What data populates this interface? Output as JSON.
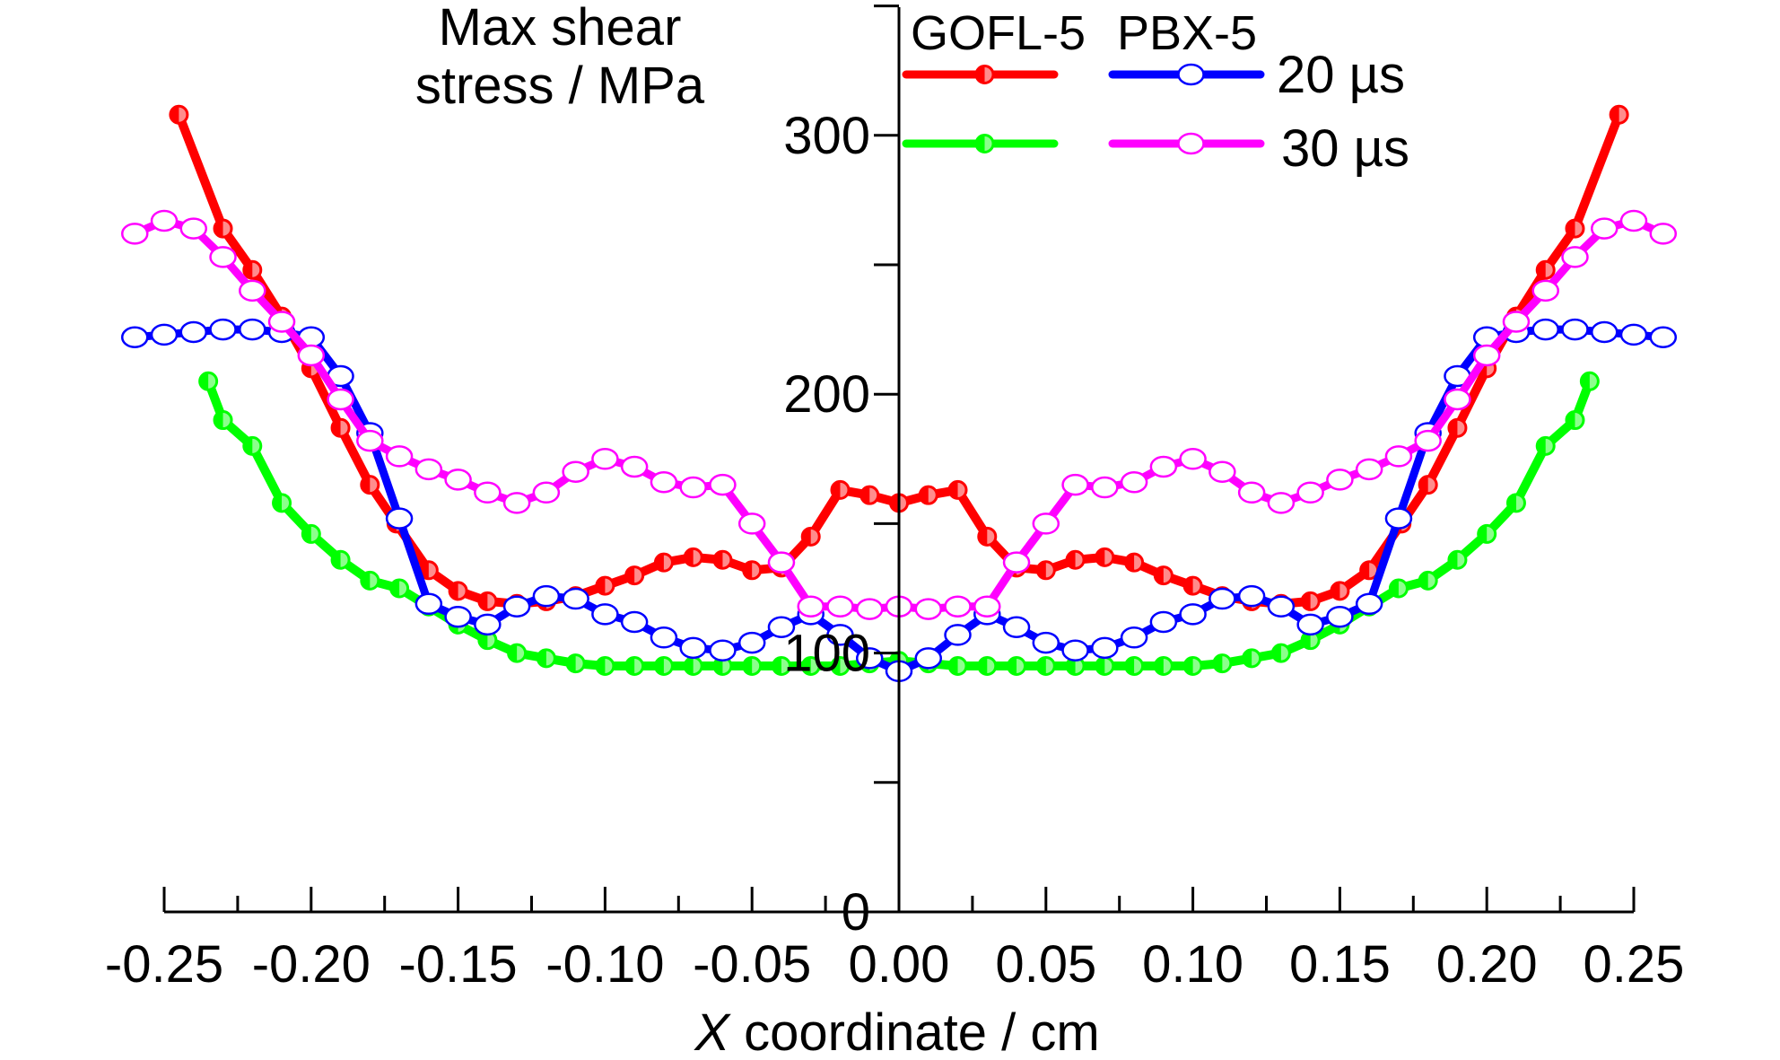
{
  "chart_data": {
    "type": "line",
    "title": "",
    "ylabel_lines": [
      "Max shear",
      "stress / MPa"
    ],
    "xlabel_var": "X",
    "xlabel_rest": " coordinate / cm",
    "xlim": [
      -0.25,
      0.25
    ],
    "ylim": [
      0,
      350
    ],
    "x_ticks": [
      "-0.25",
      "-0.20",
      "-0.15",
      "-0.10",
      "-0.05",
      "0.00",
      "0.05",
      "0.10",
      "0.15",
      "0.20",
      "0.25"
    ],
    "y_ticks": [
      "0",
      "100",
      "200",
      "300"
    ],
    "legend": {
      "group_labels": [
        "GOFL-5",
        "PBX-5"
      ],
      "time_labels": [
        "20 µs",
        "30 µs"
      ]
    },
    "grid": false,
    "series": [
      {
        "name": "GOFL-5 20 µs",
        "color": "#ff0000",
        "marker": "half-filled",
        "points": [
          [
            -0.245,
            308
          ],
          [
            -0.23,
            264
          ],
          [
            -0.22,
            248
          ],
          [
            -0.21,
            230
          ],
          [
            -0.2,
            210
          ],
          [
            -0.19,
            187
          ],
          [
            -0.18,
            165
          ],
          [
            -0.171,
            150
          ],
          [
            -0.16,
            132
          ],
          [
            -0.15,
            124
          ],
          [
            -0.14,
            120
          ],
          [
            -0.13,
            119
          ],
          [
            -0.12,
            120
          ],
          [
            -0.11,
            122
          ],
          [
            -0.1,
            126
          ],
          [
            -0.09,
            130
          ],
          [
            -0.08,
            135
          ],
          [
            -0.07,
            137
          ],
          [
            -0.06,
            136
          ],
          [
            -0.05,
            132
          ],
          [
            -0.04,
            133
          ],
          [
            -0.03,
            145
          ],
          [
            -0.02,
            163
          ],
          [
            -0.01,
            161
          ],
          [
            0.0,
            158
          ],
          [
            0.01,
            161
          ],
          [
            0.02,
            163
          ],
          [
            0.03,
            145
          ],
          [
            0.04,
            133
          ],
          [
            0.05,
            132
          ],
          [
            0.06,
            136
          ],
          [
            0.07,
            137
          ],
          [
            0.08,
            135
          ],
          [
            0.09,
            130
          ],
          [
            0.1,
            126
          ],
          [
            0.11,
            122
          ],
          [
            0.12,
            120
          ],
          [
            0.13,
            119
          ],
          [
            0.14,
            120
          ],
          [
            0.15,
            124
          ],
          [
            0.16,
            132
          ],
          [
            0.171,
            150
          ],
          [
            0.18,
            165
          ],
          [
            0.19,
            187
          ],
          [
            0.2,
            210
          ],
          [
            0.21,
            230
          ],
          [
            0.22,
            248
          ],
          [
            0.23,
            264
          ],
          [
            0.245,
            308
          ]
        ]
      },
      {
        "name": "GOFL-5 30 µs",
        "color": "#00ff00",
        "marker": "half-filled",
        "points": [
          [
            -0.235,
            205
          ],
          [
            -0.23,
            190
          ],
          [
            -0.22,
            180
          ],
          [
            -0.21,
            158
          ],
          [
            -0.2,
            146
          ],
          [
            -0.19,
            136
          ],
          [
            -0.18,
            128
          ],
          [
            -0.17,
            125
          ],
          [
            -0.16,
            118
          ],
          [
            -0.15,
            111
          ],
          [
            -0.14,
            105
          ],
          [
            -0.13,
            100
          ],
          [
            -0.12,
            98
          ],
          [
            -0.11,
            96
          ],
          [
            -0.1,
            95
          ],
          [
            -0.09,
            95
          ],
          [
            -0.08,
            95
          ],
          [
            -0.07,
            95
          ],
          [
            -0.06,
            95
          ],
          [
            -0.05,
            95
          ],
          [
            -0.04,
            95
          ],
          [
            -0.03,
            95
          ],
          [
            -0.02,
            95
          ],
          [
            -0.01,
            96
          ],
          [
            0.0,
            97
          ],
          [
            0.01,
            96
          ],
          [
            0.02,
            95
          ],
          [
            0.03,
            95
          ],
          [
            0.04,
            95
          ],
          [
            0.05,
            95
          ],
          [
            0.06,
            95
          ],
          [
            0.07,
            95
          ],
          [
            0.08,
            95
          ],
          [
            0.09,
            95
          ],
          [
            0.1,
            95
          ],
          [
            0.11,
            96
          ],
          [
            0.12,
            98
          ],
          [
            0.13,
            100
          ],
          [
            0.14,
            105
          ],
          [
            0.15,
            111
          ],
          [
            0.16,
            118
          ],
          [
            0.17,
            125
          ],
          [
            0.18,
            128
          ],
          [
            0.19,
            136
          ],
          [
            0.2,
            146
          ],
          [
            0.21,
            158
          ],
          [
            0.22,
            180
          ],
          [
            0.23,
            190
          ],
          [
            0.235,
            205
          ]
        ]
      },
      {
        "name": "PBX-5 20 µs",
        "color": "#0000ff",
        "marker": "open-circle",
        "points": [
          [
            -0.26,
            222
          ],
          [
            -0.25,
            223
          ],
          [
            -0.24,
            224
          ],
          [
            -0.23,
            225
          ],
          [
            -0.22,
            225
          ],
          [
            -0.21,
            224
          ],
          [
            -0.2,
            222
          ],
          [
            -0.19,
            207
          ],
          [
            -0.18,
            185
          ],
          [
            -0.17,
            152
          ],
          [
            -0.16,
            119
          ],
          [
            -0.15,
            114
          ],
          [
            -0.14,
            111
          ],
          [
            -0.13,
            118
          ],
          [
            -0.12,
            122
          ],
          [
            -0.11,
            121
          ],
          [
            -0.1,
            115
          ],
          [
            -0.09,
            112
          ],
          [
            -0.08,
            106
          ],
          [
            -0.07,
            102
          ],
          [
            -0.06,
            101
          ],
          [
            -0.05,
            104
          ],
          [
            -0.04,
            110
          ],
          [
            -0.03,
            115
          ],
          [
            -0.02,
            107
          ],
          [
            -0.01,
            98
          ],
          [
            0.0,
            93
          ],
          [
            0.01,
            98
          ],
          [
            0.02,
            107
          ],
          [
            0.03,
            115
          ],
          [
            0.04,
            110
          ],
          [
            0.05,
            104
          ],
          [
            0.06,
            101
          ],
          [
            0.07,
            102
          ],
          [
            0.08,
            106
          ],
          [
            0.09,
            112
          ],
          [
            0.1,
            115
          ],
          [
            0.11,
            121
          ],
          [
            0.12,
            122
          ],
          [
            0.13,
            118
          ],
          [
            0.14,
            111
          ],
          [
            0.15,
            114
          ],
          [
            0.16,
            119
          ],
          [
            0.17,
            152
          ],
          [
            0.18,
            185
          ],
          [
            0.19,
            207
          ],
          [
            0.2,
            222
          ],
          [
            0.21,
            224
          ],
          [
            0.22,
            225
          ],
          [
            0.23,
            225
          ],
          [
            0.24,
            224
          ],
          [
            0.25,
            223
          ],
          [
            0.26,
            222
          ]
        ]
      },
      {
        "name": "PBX-5 30 µs",
        "color": "#ff00ff",
        "marker": "open-circle",
        "points": [
          [
            -0.26,
            262
          ],
          [
            -0.25,
            267
          ],
          [
            -0.24,
            264
          ],
          [
            -0.23,
            253
          ],
          [
            -0.22,
            240
          ],
          [
            -0.21,
            228
          ],
          [
            -0.2,
            215
          ],
          [
            -0.19,
            198
          ],
          [
            -0.18,
            182
          ],
          [
            -0.17,
            176
          ],
          [
            -0.16,
            171
          ],
          [
            -0.15,
            167
          ],
          [
            -0.14,
            162
          ],
          [
            -0.13,
            158
          ],
          [
            -0.12,
            162
          ],
          [
            -0.11,
            170
          ],
          [
            -0.1,
            175
          ],
          [
            -0.09,
            172
          ],
          [
            -0.08,
            166
          ],
          [
            -0.07,
            164
          ],
          [
            -0.06,
            165
          ],
          [
            -0.05,
            150
          ],
          [
            -0.04,
            135
          ],
          [
            -0.03,
            118
          ],
          [
            -0.02,
            118
          ],
          [
            -0.01,
            117
          ],
          [
            0.0,
            118
          ],
          [
            0.01,
            117
          ],
          [
            0.02,
            118
          ],
          [
            0.03,
            118
          ],
          [
            0.04,
            135
          ],
          [
            0.05,
            150
          ],
          [
            0.06,
            165
          ],
          [
            0.07,
            164
          ],
          [
            0.08,
            166
          ],
          [
            0.09,
            172
          ],
          [
            0.1,
            175
          ],
          [
            0.11,
            170
          ],
          [
            0.12,
            162
          ],
          [
            0.13,
            158
          ],
          [
            0.14,
            162
          ],
          [
            0.15,
            167
          ],
          [
            0.16,
            171
          ],
          [
            0.17,
            176
          ],
          [
            0.18,
            182
          ],
          [
            0.19,
            198
          ],
          [
            0.2,
            215
          ],
          [
            0.21,
            228
          ],
          [
            0.22,
            240
          ],
          [
            0.23,
            253
          ],
          [
            0.24,
            264
          ],
          [
            0.25,
            267
          ],
          [
            0.26,
            262
          ]
        ]
      }
    ]
  }
}
